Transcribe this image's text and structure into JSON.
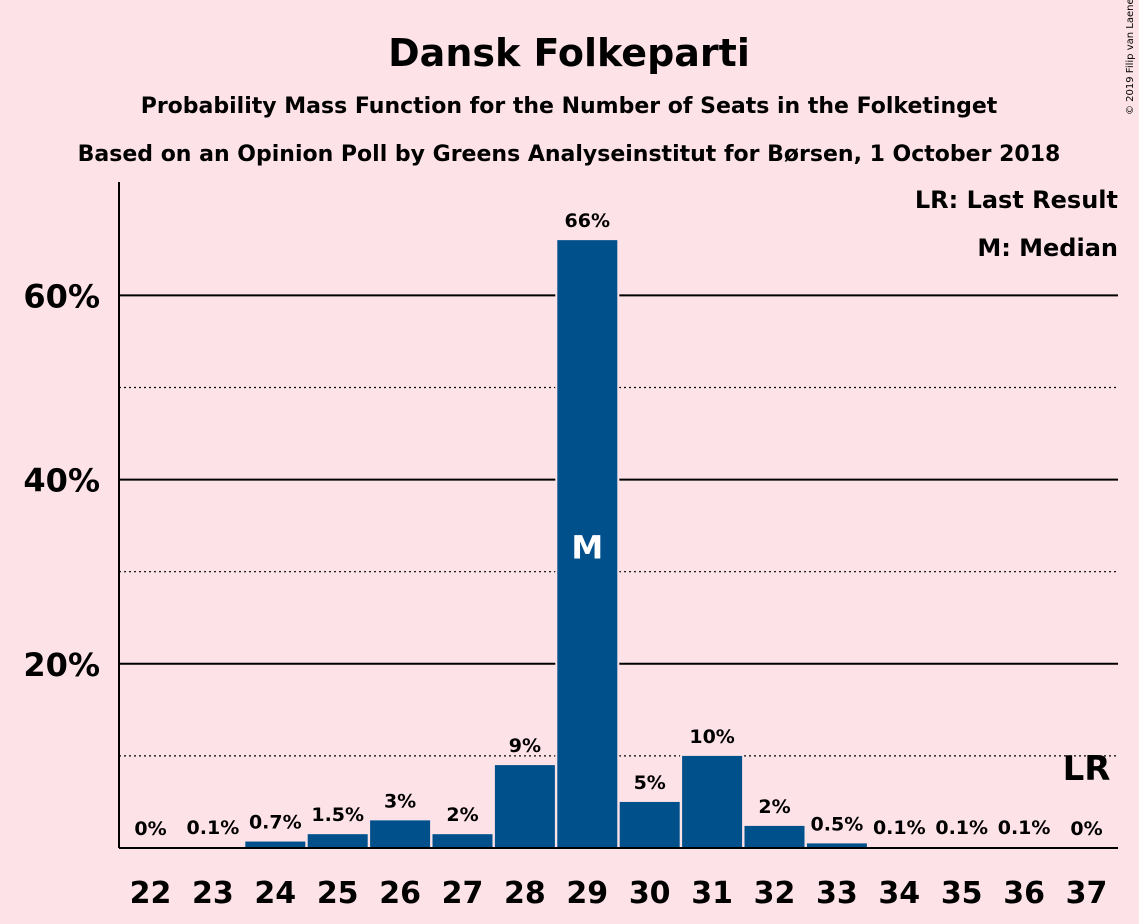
{
  "chart_data": {
    "type": "bar",
    "title": "Dansk Folkeparti",
    "subtitle": "Probability Mass Function for the Number of Seats in the Folketinget",
    "subtitle2": "Based on an Opinion Poll by Greens Analyseinstitut for Børsen, 1 October 2018",
    "copyright": "© 2019 Filip van Laenen",
    "categories": [
      "22",
      "23",
      "24",
      "25",
      "26",
      "27",
      "28",
      "29",
      "30",
      "31",
      "32",
      "33",
      "34",
      "35",
      "36",
      "37"
    ],
    "values": [
      0,
      0.1,
      0.7,
      1.5,
      3,
      1.5,
      9,
      66,
      5,
      10,
      2.4,
      0.5,
      0.1,
      0.1,
      0.1,
      0
    ],
    "labels": [
      "0%",
      "0.1%",
      "0.7%",
      "1.5%",
      "3%",
      "2%",
      "9%",
      "66%",
      "5%",
      "10%",
      "2%",
      "0.5%",
      "0.1%",
      "0.1%",
      "0.1%",
      "0%"
    ],
    "ylim": [
      0,
      72
    ],
    "yticks": [
      {
        "value": 20,
        "label": "20%"
      },
      {
        "value": 40,
        "label": "40%"
      },
      {
        "value": 60,
        "label": "60%"
      }
    ],
    "minor_gridlines": [
      10,
      30,
      50
    ],
    "bar_color": "#00508C",
    "median": {
      "category": "29",
      "marker": "M"
    },
    "last_result": {
      "category": "37",
      "marker": "LR"
    },
    "legend": [
      "LR: Last Result",
      "M: Median"
    ],
    "legend_position": "top-right"
  }
}
